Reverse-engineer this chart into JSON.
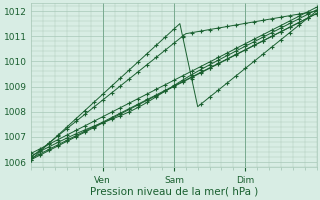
{
  "xlabel": "Pression niveau de la mer( hPa )",
  "ylim": [
    1005.8,
    1012.3
  ],
  "xlim": [
    0,
    96
  ],
  "yticks": [
    1006,
    1007,
    1008,
    1009,
    1010,
    1011,
    1012
  ],
  "xtick_positions": [
    24,
    48,
    72
  ],
  "xtick_labels": [
    "Ven",
    "Sam",
    "Dim"
  ],
  "bg_color": "#d8ede4",
  "grid_color": "#a8c8b8",
  "line_color": "#1a6030",
  "figsize": [
    3.2,
    2.0
  ],
  "dpi": 100
}
